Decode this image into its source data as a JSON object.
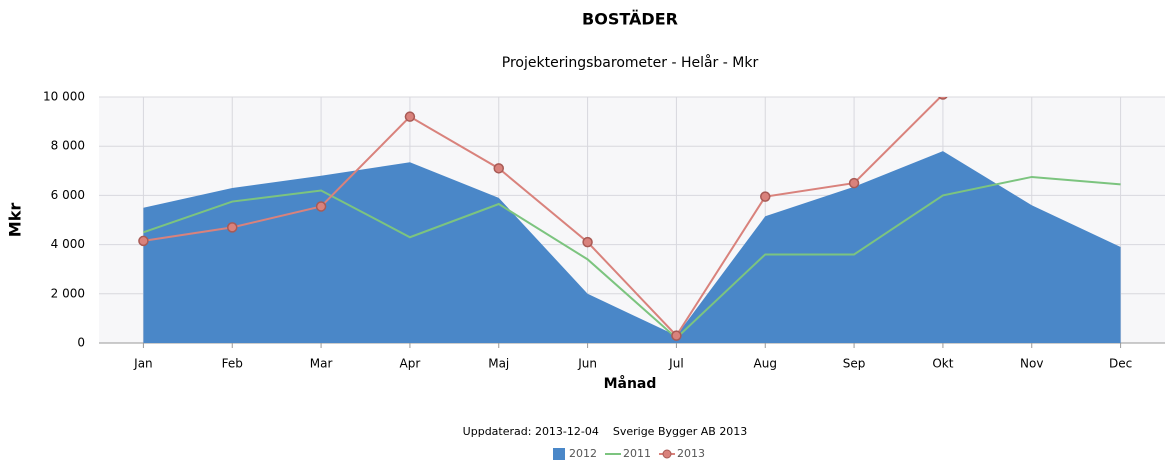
{
  "chart_data": {
    "type": "line",
    "title": "BOSTÄDER",
    "subtitle": "Projekteringsbarometer - Helår - Mkr",
    "x_label": "Månad",
    "y_label": "Mkr",
    "footnote": "Uppdaterad: 2013-12-04    Sverige Bygger AB 2013",
    "categories": [
      "Jan",
      "Feb",
      "Mar",
      "Apr",
      "Maj",
      "Jun",
      "Jul",
      "Aug",
      "Sep",
      "Okt",
      "Nov",
      "Dec"
    ],
    "series": [
      {
        "name": "2012",
        "color": "#4a87c8",
        "kind": "area",
        "values": [
          5500,
          6300,
          6800,
          7350,
          5900,
          2000,
          300,
          5150,
          6350,
          7800,
          5600,
          3900
        ]
      },
      {
        "name": "2011",
        "color": "#7cc47f",
        "kind": "line",
        "values": [
          4500,
          5750,
          6200,
          4300,
          5650,
          3400,
          200,
          3600,
          3600,
          6000,
          6750,
          6450
        ]
      },
      {
        "name": "2013",
        "color": "#d9827c",
        "kind": "marker-line",
        "values": [
          4150,
          4700,
          5550,
          9200,
          7100,
          4100,
          300,
          5950,
          6500,
          10100,
          null,
          null
        ]
      }
    ],
    "ylim": [
      0,
      10000
    ],
    "yticks": [
      0,
      {
        "value": 2000,
        "label": "2 000"
      },
      {
        "value": 4000,
        "label": "4 000"
      },
      {
        "value": 6000,
        "label": "6 000"
      },
      {
        "value": 8000,
        "label": "8 000"
      },
      {
        "value": 10000,
        "label": "10 000"
      }
    ],
    "grid": true,
    "legend": "bottom"
  }
}
